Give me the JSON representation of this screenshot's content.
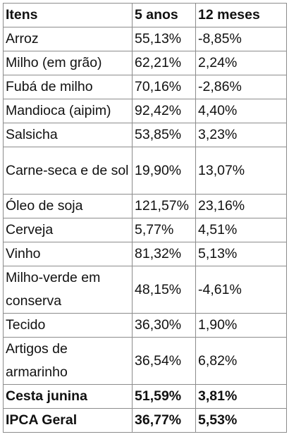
{
  "table": {
    "headers": [
      "Itens",
      "5 anos",
      "12 meses"
    ],
    "rows": [
      {
        "item": "Arroz",
        "five_years": "55,13%",
        "twelve_months": "-8,85%",
        "bold": false,
        "lines": 1
      },
      {
        "item": "Milho (em grão)",
        "five_years": "62,21%",
        "twelve_months": "2,24%",
        "bold": false,
        "lines": 1
      },
      {
        "item": "Fubá de milho",
        "five_years": "70,16%",
        "twelve_months": "-2,86%",
        "bold": false,
        "lines": 1
      },
      {
        "item": "Mandioca (aipim)",
        "five_years": "92,42%",
        "twelve_months": "4,40%",
        "bold": false,
        "lines": 1
      },
      {
        "item": "Salsicha",
        "five_years": "53,85%",
        "twelve_months": "3,23%",
        "bold": false,
        "lines": 1
      },
      {
        "item": "Carne-seca e de sol",
        "five_years": "19,90%",
        "twelve_months": "13,07%",
        "bold": false,
        "lines": 2
      },
      {
        "item": "Óleo de soja",
        "five_years": "121,57%",
        "twelve_months": "23,16%",
        "bold": false,
        "lines": 1
      },
      {
        "item": "Cerveja",
        "five_years": "5,77%",
        "twelve_months": "4,51%",
        "bold": false,
        "lines": 1
      },
      {
        "item": "Vinho",
        "five_years": "81,32%",
        "twelve_months": "5,13%",
        "bold": false,
        "lines": 1
      },
      {
        "item": "Milho-verde em conserva",
        "five_years": "48,15%",
        "twelve_months": "-4,61%",
        "bold": false,
        "lines": 2
      },
      {
        "item": "Tecido",
        "five_years": "36,30%",
        "twelve_months": "1,90%",
        "bold": false,
        "lines": 1
      },
      {
        "item": "Artigos de armarinho",
        "five_years": "36,54%",
        "twelve_months": "6,82%",
        "bold": false,
        "lines": 2
      },
      {
        "item": "Cesta junina",
        "five_years": "51,59%",
        "twelve_months": "3,81%",
        "bold": true,
        "lines": 1
      },
      {
        "item": "IPCA Geral",
        "five_years": "36,77%",
        "twelve_months": "5,53%",
        "bold": true,
        "lines": 1
      }
    ]
  }
}
